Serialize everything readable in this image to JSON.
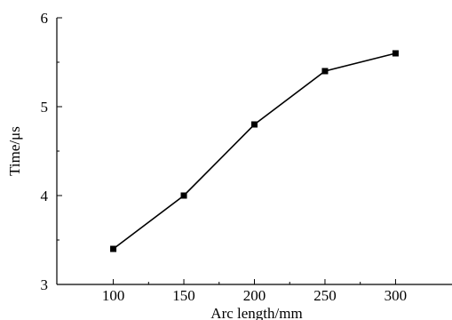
{
  "chart_data": {
    "type": "line",
    "title": "",
    "xlabel": "Arc length/mm",
    "ylabel": "Time/μs",
    "x": [
      100,
      150,
      200,
      250,
      300
    ],
    "series": [
      {
        "values": [
          3.4,
          4.0,
          4.8,
          5.4,
          5.6
        ]
      }
    ],
    "xlim": [
      60,
      340
    ],
    "ylim": [
      3,
      6
    ],
    "xticks": [
      100,
      150,
      200,
      250,
      300
    ],
    "xtick_labels": [
      "100",
      "150",
      "200",
      "250",
      "300"
    ],
    "yticks": [
      3,
      4,
      5,
      6
    ],
    "ytick_labels": [
      "3",
      "4",
      "5",
      "6"
    ],
    "grid": false,
    "marker": "square",
    "line_color": "#000000"
  }
}
